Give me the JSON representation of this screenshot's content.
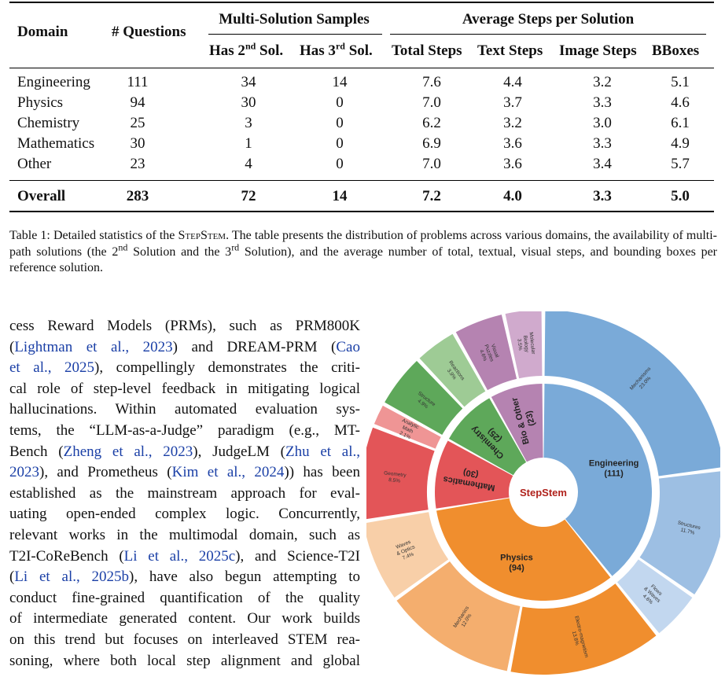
{
  "table": {
    "headers": {
      "domain": "Domain",
      "questions": "# Questions",
      "group_multi": "Multi-Solution Samples",
      "group_avg": "Average Steps per Solution",
      "has2_pre": "Has 2",
      "has2_sup": "nd",
      "has2_post": " Sol.",
      "has3_pre": "Has 3",
      "has3_sup": "rd",
      "has3_post": " Sol.",
      "total": "Total Steps",
      "text": "Text Steps",
      "image": "Image Steps",
      "bboxes": "BBoxes"
    },
    "rows": [
      {
        "domain": "Engineering",
        "q": "111",
        "s2": "34",
        "s3": "14",
        "total": "7.6",
        "text": "4.4",
        "image": "3.2",
        "bbox": "5.1"
      },
      {
        "domain": "Physics",
        "q": "94",
        "s2": "30",
        "s3": "0",
        "total": "7.0",
        "text": "3.7",
        "image": "3.3",
        "bbox": "4.6"
      },
      {
        "domain": "Chemistry",
        "q": "25",
        "s2": "3",
        "s3": "0",
        "total": "6.2",
        "text": "3.2",
        "image": "3.0",
        "bbox": "6.1"
      },
      {
        "domain": "Mathematics",
        "q": "30",
        "s2": "1",
        "s3": "0",
        "total": "6.9",
        "text": "3.6",
        "image": "3.3",
        "bbox": "4.9"
      },
      {
        "domain": "Other",
        "q": "23",
        "s2": "4",
        "s3": "0",
        "total": "7.0",
        "text": "3.6",
        "image": "3.4",
        "bbox": "5.7"
      }
    ],
    "overall": {
      "domain": "Overall",
      "q": "283",
      "s2": "72",
      "s3": "14",
      "total": "7.2",
      "text": "4.0",
      "image": "3.3",
      "bbox": "5.0"
    }
  },
  "caption": {
    "lead": "Table 1: Detailed statistics of the ",
    "name": "StepStem",
    "p1": ". The table presents the distribution of problems across various domains, the availability of multi-path solutions (the 2",
    "sup1": "nd",
    "p2": " Solution and the 3",
    "sup2": "rd",
    "p3": " Solution), and the average number of total, textual, visual steps, and bounding boxes per reference solution."
  },
  "body": {
    "l1": "cess Reward Models (PRMs), such as PRM800K",
    "l2a": "(",
    "l2c": "Lightman et al., 2023",
    "l2b": ") and DREAM-PRM (",
    "l2d": "Cao",
    "l3c": "et al., 2025",
    "l3b": "), compellingly demonstrates the criti-",
    "l4": "cal role of step-level feedback in mitigating logical",
    "l5": "hallucinations. Within automated evaluation sys-",
    "l6": "tems, the “LLM-as-a-Judge” paradigm (e.g., MT-",
    "l7a": "Bench (",
    "l7c": "Zheng et al., 2023",
    "l7b": "), JudgeLM (",
    "l7d": "Zhu et al.,",
    "l8c": "2023",
    "l8b": "), and Prometheus (",
    "l8d": "Kim et al., 2024",
    "l8e": ")) has been",
    "l9": "established as the mainstream approach for eval-",
    "l10": "uating open-ended complex logic. Concurrently,",
    "l11": "relevant works in the multimodal domain, such as",
    "l12a": "T2I-CoReBench (",
    "l12c": "Li et al., 2025c",
    "l12b": "), and Science-T2I",
    "l13a": "(",
    "l13c": "Li et al., 2025b",
    "l13b": "), have also begun attempting to",
    "l14": "conduct fine-grained quantification of the quality",
    "l15": "of intermediate generated content. Our work builds",
    "l16": "on this trend but focuses on interleaved STEM rea-",
    "l17": "soning, where both local step alignment and global"
  },
  "chart_data": {
    "type": "sunburst",
    "center_label": "StepStem",
    "inner": [
      {
        "name": "Engineering",
        "count": "(111)",
        "value": 111,
        "color": "#7aaad8"
      },
      {
        "name": "Physics",
        "count": "(94)",
        "value": 94,
        "color": "#f08e2e"
      },
      {
        "name": "Mathematics",
        "count": "(30)",
        "value": 30,
        "color": "#e35558"
      },
      {
        "name": "Chemistry",
        "count": "(25)",
        "value": 25,
        "color": "#5ea85a"
      },
      {
        "name": "Bio & Other",
        "count": "(23)",
        "value": 23,
        "color": "#b583b1"
      }
    ],
    "outer": [
      {
        "name": "Mechanisms",
        "pct": "23.0%",
        "value": 23.0,
        "parent": "Engineering",
        "color": "#7aaad8"
      },
      {
        "name": "Structures",
        "pct": "11.7%",
        "value": 11.7,
        "parent": "Engineering",
        "color": "#9dbfe3"
      },
      {
        "name": "Flows & Waves",
        "pct": "4.6%",
        "value": 4.6,
        "parent": "Engineering",
        "color": "#c2d7ef"
      },
      {
        "name": "Electro-magnetism",
        "pct": "13.8%",
        "value": 13.8,
        "parent": "Physics",
        "color": "#f08e2e"
      },
      {
        "name": "Mechanics",
        "pct": "12.0%",
        "value": 12.0,
        "parent": "Physics",
        "color": "#f4ae6e"
      },
      {
        "name": "Waves & Optics",
        "pct": "7.4%",
        "value": 7.4,
        "parent": "Physics",
        "color": "#f8cfa8"
      },
      {
        "name": "Geometry",
        "pct": "8.5%",
        "value": 8.5,
        "parent": "Mathematics",
        "color": "#e35558"
      },
      {
        "name": "Analytic Math",
        "pct": "2.1%",
        "value": 2.1,
        "parent": "Mathematics",
        "color": "#ef9595"
      },
      {
        "name": "Structure",
        "pct": "4.9%",
        "value": 4.9,
        "parent": "Chemistry",
        "color": "#5ea85a"
      },
      {
        "name": "Reactions",
        "pct": "3.9%",
        "value": 3.9,
        "parent": "Chemistry",
        "color": "#9ecb95"
      },
      {
        "name": "Visual Puzzles",
        "pct": "4.6%",
        "value": 4.6,
        "parent": "Bio & Other",
        "color": "#b583b1"
      },
      {
        "name": "Molecular Biology",
        "pct": "3.5%",
        "value": 3.5,
        "parent": "Bio & Other",
        "color": "#d0aacd"
      }
    ]
  }
}
